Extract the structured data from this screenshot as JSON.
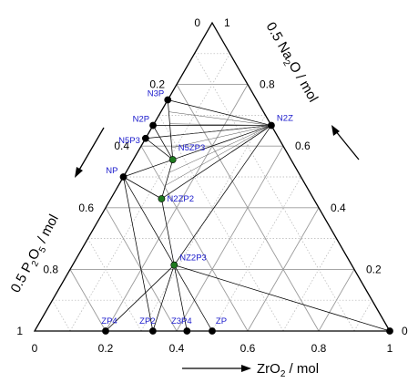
{
  "axes": {
    "zro2": {
      "title": "ZrO",
      "sub": "2",
      "suffix": " / mol",
      "ticks": [
        "0",
        "0.2",
        "0.4",
        "0.6",
        "0.8",
        "1"
      ]
    },
    "na2o": {
      "prefix": "0.5 Na",
      "sub": "2",
      "suffix": "O / mol",
      "ticks": [
        "1",
        "0.8",
        "0.6",
        "0.4",
        "0.2",
        "0"
      ]
    },
    "p2o5": {
      "prefix": "0.5 P",
      "sub1": "2",
      "mid": "O",
      "sub2": "5",
      "suffix": " / mol",
      "ticks": [
        "0",
        "0.2",
        "0.4",
        "0.6",
        "0.8",
        "1"
      ]
    }
  },
  "phases": [
    {
      "id": "N3P",
      "label": "N3P",
      "zr": 0.0,
      "na": 0.75,
      "color": "#000000"
    },
    {
      "id": "N2P",
      "label": "N2P",
      "zr": 0.0,
      "na": 0.667,
      "color": "#000000"
    },
    {
      "id": "N5P3",
      "label": "N5P3",
      "zr": 0.0,
      "na": 0.625,
      "color": "#000000"
    },
    {
      "id": "NP",
      "label": "NP",
      "zr": 0.0,
      "na": 0.5,
      "color": "#000000"
    },
    {
      "id": "N2Z",
      "label": "N2Z",
      "zr": 0.333,
      "na": 0.667,
      "color": "#000000"
    },
    {
      "id": "N5ZP3",
      "label": "N5ZP3",
      "zr": 0.111,
      "na": 0.556,
      "color": "#1f7a1f"
    },
    {
      "id": "N2ZP2",
      "label": "N2ZP2",
      "zr": 0.143,
      "na": 0.429,
      "color": "#1f7a1f"
    },
    {
      "id": "NZ2P3",
      "label": "NZ2P3",
      "zr": 0.286,
      "na": 0.214,
      "color": "#1f7a1f"
    },
    {
      "id": "ZP4",
      "label": "ZP4",
      "zr": 0.2,
      "na": 0.0,
      "color": "#000000"
    },
    {
      "id": "ZP2",
      "label": "ZP2",
      "zr": 0.333,
      "na": 0.0,
      "color": "#000000"
    },
    {
      "id": "Z3P4",
      "label": "Z3P4",
      "zr": 0.429,
      "na": 0.0,
      "color": "#000000"
    },
    {
      "id": "ZP",
      "label": "ZP",
      "zr": 0.5,
      "na": 0.0,
      "color": "#000000"
    },
    {
      "id": "ZrO2",
      "label": "",
      "zr": 1.0,
      "na": 0.0,
      "color": "#000000"
    }
  ],
  "tie_lines": [
    [
      "N3P",
      "N2Z"
    ],
    [
      "N2P",
      "N2Z"
    ],
    [
      "N5P3",
      "N2Z"
    ],
    [
      "N5ZP3",
      "N2Z"
    ],
    [
      "N2ZP2",
      "N2Z"
    ],
    [
      "N3P",
      "N5ZP3"
    ],
    [
      "N2P",
      "N5ZP3"
    ],
    [
      "N5P3",
      "N5ZP3"
    ],
    [
      "NP",
      "N5ZP3"
    ],
    [
      "N5ZP3",
      "N2ZP2"
    ],
    [
      "N2ZP2",
      "NZ2P3"
    ],
    [
      "NP",
      "N2ZP2"
    ],
    [
      "NP",
      "NZ2P3"
    ],
    [
      "NP",
      "ZP2"
    ],
    [
      "ZP4",
      "NZ2P3"
    ],
    [
      "ZP2",
      "NZ2P3"
    ],
    [
      "Z3P4",
      "NZ2P3"
    ],
    [
      "ZP",
      "NZ2P3"
    ],
    [
      "NZ2P3",
      "ZrO2"
    ],
    [
      "N2Z",
      "NZ2P3"
    ],
    [
      "N2Z",
      "ZrO2"
    ]
  ]
}
